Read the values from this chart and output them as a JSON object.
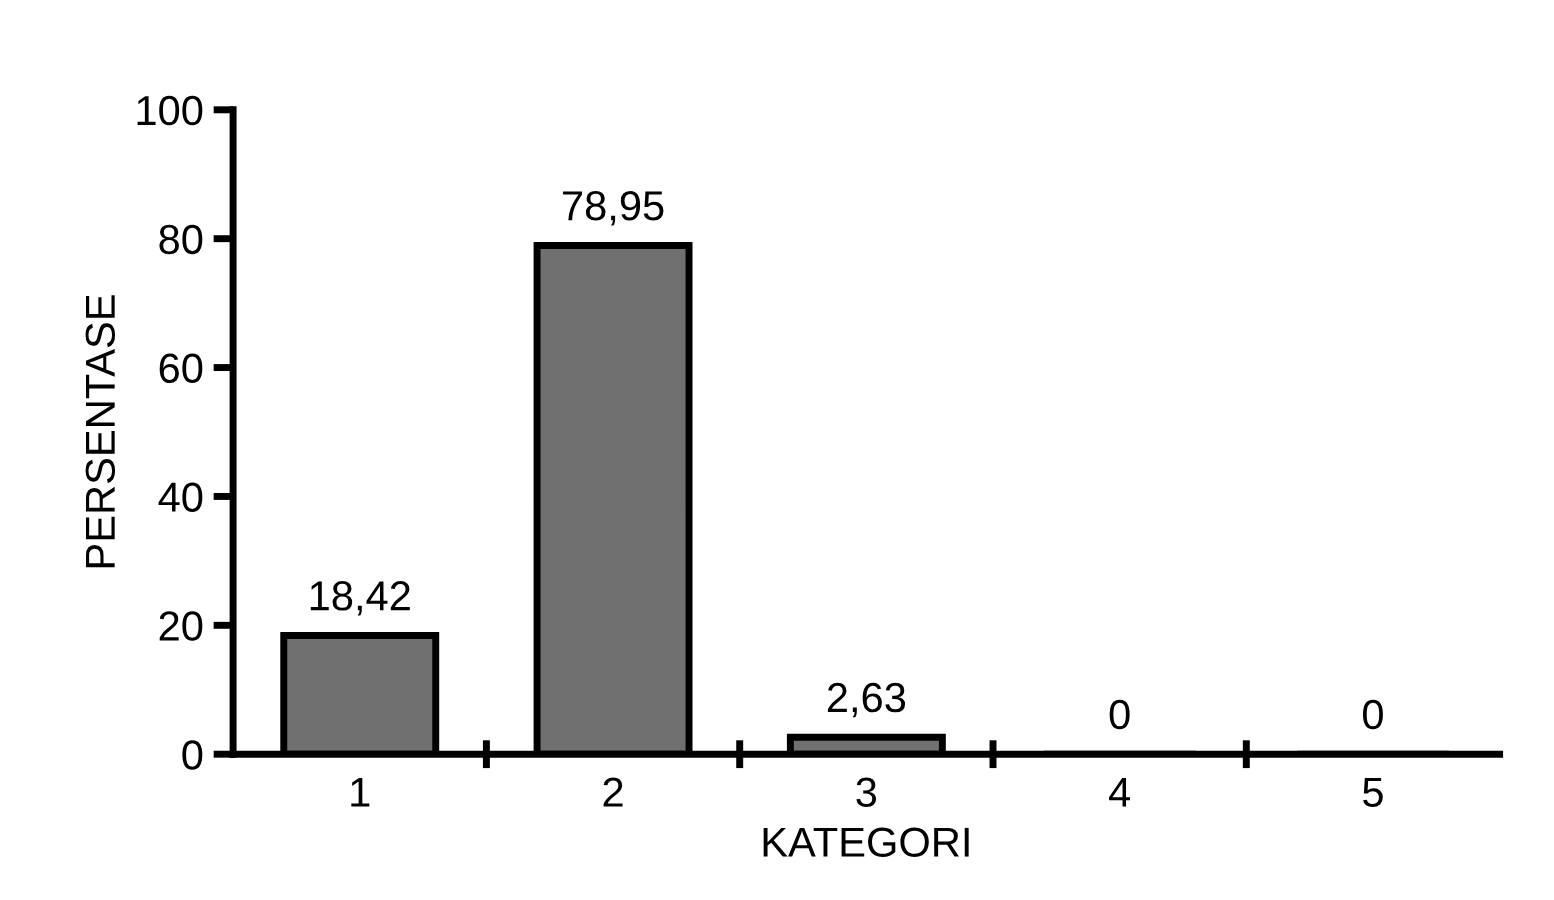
{
  "chart_data": {
    "type": "bar",
    "xlabel": "KATEGORI",
    "ylabel": "PERSENTASE",
    "categories": [
      "1",
      "2",
      "3",
      "4",
      "5"
    ],
    "values": [
      18.42,
      78.95,
      2.63,
      0,
      0
    ],
    "value_labels": [
      "18,42",
      "78,95",
      "2,63",
      "0",
      "0"
    ],
    "color": "#707070",
    "ylim": [
      0,
      100
    ],
    "yticks": [
      0,
      20,
      40,
      60,
      80,
      100
    ],
    "grid": false
  }
}
